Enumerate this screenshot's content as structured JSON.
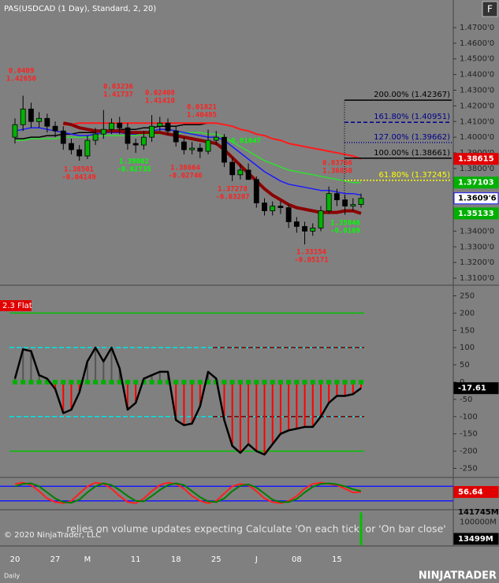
{
  "page": {
    "copyright": "© 2020 NinjaTrader, LLC",
    "warning": "relies on volume updates expecting Calculate 'On each tick' or 'On bar close'",
    "period": "Daily",
    "logo": "NINJATRADER",
    "button": "F"
  },
  "chart_data": [
    {
      "type": "candlestick",
      "title": "PAS(USDCAD (1 Day), Standard, 2, 20)",
      "categories": [
        "20",
        null,
        null,
        null,
        null,
        "27",
        null,
        null,
        null,
        "M",
        null,
        null,
        null,
        null,
        null,
        "11",
        null,
        null,
        null,
        null,
        "18",
        null,
        null,
        null,
        null,
        "25",
        null,
        null,
        null,
        null,
        "J",
        null,
        null,
        null,
        null,
        "08",
        null,
        null,
        null,
        null,
        "15",
        null,
        null,
        null
      ],
      "open": [
        1.4,
        1.408,
        1.418,
        1.41,
        1.412,
        1.407,
        1.404,
        1.396,
        1.392,
        1.388,
        1.398,
        1.402,
        1.405,
        1.409,
        1.406,
        1.396,
        1.395,
        1.4,
        1.407,
        1.409,
        1.404,
        1.397,
        1.392,
        1.393,
        1.391,
        1.398,
        1.4,
        1.384,
        1.376,
        1.379,
        1.373,
        1.358,
        1.353,
        1.356,
        1.355,
        1.346,
        1.343,
        1.34,
        1.342,
        1.353,
        1.364,
        1.36,
        1.356,
        1.357
      ],
      "high": [
        1.412,
        1.4265,
        1.422,
        1.416,
        1.415,
        1.41,
        1.407,
        1.399,
        1.395,
        1.401,
        1.406,
        1.41737,
        1.412,
        1.413,
        1.409,
        1.399,
        1.404,
        1.4141,
        1.413,
        1.412,
        1.407,
        1.4,
        1.397,
        1.396,
        1.40485,
        1.404,
        1.402,
        1.387,
        1.383,
        1.38325,
        1.375,
        1.361,
        1.359,
        1.359,
        1.357,
        1.349,
        1.346,
        1.345,
        1.356,
        1.3685,
        1.367,
        1.363,
        1.361,
        1.364
      ],
      "low": [
        1.396,
        1.404,
        1.406,
        1.406,
        1.403,
        1.4,
        1.392,
        1.389,
        1.38501,
        1.386,
        1.395,
        1.399,
        1.402,
        1.402,
        1.392,
        1.39002,
        1.392,
        1.397,
        1.404,
        1.401,
        1.394,
        1.389,
        1.389,
        1.38664,
        1.389,
        1.395,
        1.381,
        1.372,
        1.373,
        1.37278,
        1.355,
        1.35,
        1.35,
        1.351,
        1.342,
        1.339,
        1.33154,
        1.337,
        1.34,
        1.351,
        1.356,
        1.35046,
        1.353,
        1.355
      ],
      "close": [
        1.408,
        1.418,
        1.41,
        1.412,
        1.407,
        1.404,
        1.396,
        1.392,
        1.388,
        1.398,
        1.402,
        1.405,
        1.409,
        1.406,
        1.396,
        1.395,
        1.4,
        1.407,
        1.409,
        1.404,
        1.397,
        1.392,
        1.393,
        1.391,
        1.398,
        1.4,
        1.384,
        1.376,
        1.379,
        1.373,
        1.358,
        1.353,
        1.356,
        1.355,
        1.346,
        1.343,
        1.34,
        1.342,
        1.353,
        1.364,
        1.36,
        1.356,
        1.357,
        1.36096
      ],
      "last_label": "1.3609'6",
      "up_color": "#00b400",
      "down_color": "#000000",
      "ylim": [
        1.3065,
        1.4876
      ],
      "yticks": [
        {
          "value": 1.47,
          "label": "1.4700'0"
        },
        {
          "value": 1.46,
          "label": "1.4600'0"
        },
        {
          "value": 1.45,
          "label": "1.4500'0"
        },
        {
          "value": 1.44,
          "label": "1.4400'0"
        },
        {
          "value": 1.43,
          "label": "1.4300'0"
        },
        {
          "value": 1.42,
          "label": "1.4200'0"
        },
        {
          "value": 1.41,
          "label": "1.4100'0"
        },
        {
          "value": 1.4,
          "label": "1.4000'0"
        },
        {
          "value": 1.39,
          "label": "1.3900'0"
        },
        {
          "value": 1.38,
          "label": "1.3800'0"
        },
        {
          "value": 1.37,
          "label": "1.3700'0"
        },
        {
          "value": 1.36,
          "label": "1.3600'0"
        },
        {
          "value": 1.35,
          "label": "1.3500'0"
        },
        {
          "value": 1.34,
          "label": "1.3400'0"
        },
        {
          "value": 1.33,
          "label": "1.3300'0"
        },
        {
          "value": 1.32,
          "label": "1.3200'0"
        },
        {
          "value": 1.31,
          "label": "1.3100'0"
        }
      ],
      "series": [
        {
          "color": "#000000",
          "width": 1.5,
          "values": [
            1.399,
            1.399,
            1.4,
            1.4,
            1.401,
            1.401,
            1.402,
            1.402,
            1.403,
            1.403,
            1.403,
            1.404,
            1.404,
            1.405,
            1.405,
            1.405,
            1.406,
            1.406,
            1.407,
            1.407,
            1.407,
            1.408,
            1.408,
            1.408,
            1.409,
            1.409,
            null,
            null,
            null,
            null,
            null,
            null,
            null,
            null,
            null,
            null,
            null,
            null,
            null,
            null,
            null,
            null,
            null,
            null
          ]
        },
        {
          "color": "#ff1a1a",
          "width": 2,
          "tag_color": "#e00000",
          "values": [
            null,
            null,
            null,
            null,
            null,
            null,
            1.408,
            1.408,
            1.409,
            1.409,
            1.409,
            1.409,
            1.409,
            1.409,
            1.409,
            1.409,
            1.409,
            1.409,
            1.409,
            1.409,
            1.409,
            1.409,
            1.409,
            1.409,
            1.409,
            1.409,
            1.408,
            1.407,
            1.405,
            1.404,
            1.402,
            1.401,
            1.399,
            1.398,
            1.396,
            1.395,
            1.394,
            1.393,
            1.392,
            1.391,
            1.39,
            1.389,
            1.388,
            1.38615
          ]
        },
        {
          "color": "#30e030",
          "width": 1.5,
          "tag_color": "#00b000",
          "values": [
            1.398,
            1.398,
            1.399,
            1.399,
            1.399,
            1.399,
            1.4,
            1.4,
            1.4,
            1.4,
            1.4,
            1.401,
            1.401,
            1.401,
            1.401,
            1.401,
            1.402,
            1.402,
            1.402,
            1.402,
            1.402,
            1.403,
            1.403,
            1.403,
            1.402,
            1.402,
            1.4,
            1.397,
            1.394,
            1.391,
            1.388,
            1.385,
            1.383,
            1.381,
            1.379,
            1.378,
            1.377,
            1.376,
            1.375,
            1.374,
            1.373,
            1.372,
            1.371,
            1.37103
          ]
        },
        {
          "color": "#1a1aff",
          "width": 1.5,
          "values": [
            1.404,
            1.405,
            1.406,
            1.406,
            1.405,
            1.404,
            1.403,
            1.402,
            1.401,
            1.401,
            1.402,
            1.403,
            1.403,
            1.403,
            1.402,
            1.402,
            1.403,
            1.404,
            1.405,
            1.405,
            1.404,
            1.403,
            1.402,
            1.401,
            1.4,
            1.4,
            1.398,
            1.394,
            1.39,
            1.386,
            1.382,
            1.378,
            1.375,
            1.372,
            1.37,
            1.369,
            1.368,
            1.367,
            1.366,
            1.366,
            1.365,
            1.364,
            1.364,
            1.363
          ]
        },
        {
          "color": "#8b0000",
          "width": 4,
          "tag_color": "#00b000",
          "values": [
            null,
            null,
            null,
            null,
            null,
            null,
            1.409,
            1.408,
            1.406,
            1.405,
            1.404,
            1.404,
            1.404,
            1.404,
            1.403,
            1.403,
            1.403,
            1.403,
            1.403,
            1.402,
            1.401,
            1.4,
            1.399,
            1.398,
            1.397,
            1.396,
            1.392,
            1.387,
            1.382,
            1.377,
            1.372,
            1.367,
            1.363,
            1.36,
            1.357,
            1.355,
            1.354,
            1.353,
            1.352,
            1.352,
            1.352,
            1.353,
            1.353,
            1.35133
          ]
        }
      ],
      "annotations": [
        {
          "text": [
            "0.0409",
            "1.42650"
          ],
          "color": "#ff2020"
        },
        {
          "text": [
            "0.03236",
            "1.41737"
          ],
          "color": "#ff2020"
        },
        {
          "text": [
            "0.02408",
            "1.41410"
          ],
          "color": "#ff2020"
        },
        {
          "text": [
            "0.01821",
            "1.40485"
          ],
          "color": "#ff2020"
        },
        {
          "text": [
            "1.38501",
            "-0.04149"
          ],
          "color": "#ff2020"
        },
        {
          "text": [
            "1.39002",
            "-0.02735"
          ],
          "color": "#00ff00"
        },
        {
          "text": [
            "1.38664",
            "-0.02746"
          ],
          "color": "#ff2020"
        },
        {
          "text": [
            "1.37278",
            "-0.03207"
          ],
          "color": "#ff2020"
        },
        {
          "text": [
            "0.01047"
          ],
          "color": "#00ff00"
        },
        {
          "text": [
            "0.03766",
            "1.36850"
          ],
          "color": "#ff2020"
        },
        {
          "text": [
            "1.35046",
            "-0.0189"
          ],
          "color": "#00ff00"
        },
        {
          "text": [
            "1.33154",
            "-0.05171"
          ],
          "color": "#ff2020"
        }
      ],
      "fib": [
        {
          "value": 1.42367,
          "label": "200.00% (1.42367)",
          "color": "#000000",
          "dash": "none"
        },
        {
          "value": 1.40951,
          "label": "161.80% (1.40951)",
          "color": "#00008b",
          "dash": "5 3"
        },
        {
          "value": 1.39662,
          "label": "127.00% (1.39662)",
          "color": "#00008b",
          "dash": "1 2"
        },
        {
          "value": 1.38661,
          "label": "100.00% (1.38661)",
          "color": "#000000",
          "dash": "none"
        },
        {
          "value": 1.37245,
          "label": "61.80% (1.37245)",
          "color": "#ffff00",
          "dash": "2 2"
        }
      ]
    },
    {
      "type": "oscillator",
      "label": "2.3 Flat",
      "values": [
        10,
        95,
        90,
        20,
        10,
        -20,
        -90,
        -80,
        -30,
        60,
        100,
        60,
        100,
        40,
        -80,
        -60,
        10,
        20,
        30,
        30,
        -110,
        -125,
        -120,
        -70,
        30,
        10,
        -110,
        -185,
        -205,
        -180,
        -200,
        -210,
        -180,
        -150,
        -140,
        -135,
        -130,
        -130,
        -100,
        -60,
        -40,
        -40,
        -35,
        -17.61
      ],
      "ylim": [
        -274,
        274
      ],
      "yticks": [
        250,
        200,
        150,
        100,
        50,
        0,
        -50,
        -100,
        -150,
        -200,
        -250
      ],
      "levels": [
        200,
        100,
        -100,
        -200
      ],
      "color": "#000000",
      "bar_color": "#ff0000"
    },
    {
      "type": "stochastic",
      "series": [
        {
          "color": "#ff2020",
          "values": [
            90,
            95,
            85,
            60,
            30,
            15,
            10,
            20,
            50,
            80,
            95,
            90,
            70,
            40,
            15,
            10,
            30,
            60,
            85,
            95,
            90,
            70,
            40,
            20,
            10,
            20,
            50,
            80,
            90,
            85,
            60,
            30,
            15,
            10,
            20,
            40,
            70,
            90,
            95,
            90,
            85,
            70,
            55,
            56.64
          ]
        },
        {
          "color": "#008000",
          "values": [
            80,
            90,
            92,
            80,
            55,
            30,
            15,
            12,
            25,
            55,
            80,
            92,
            85,
            65,
            40,
            20,
            18,
            40,
            65,
            85,
            92,
            85,
            60,
            35,
            18,
            15,
            30,
            60,
            82,
            88,
            75,
            50,
            25,
            15,
            15,
            28,
            55,
            78,
            90,
            92,
            88,
            80,
            68,
            60
          ]
        }
      ],
      "ylim": [
        -10,
        110
      ],
      "levels": [
        80,
        20
      ]
    },
    {
      "type": "volume",
      "last": 141745,
      "last_label": "141745M",
      "current_label": "13499M",
      "ylim": [
        0,
        150000
      ],
      "yticks": [
        {
          "value": 100000,
          "label": "100000M"
        }
      ],
      "color": "#00c000"
    }
  ]
}
